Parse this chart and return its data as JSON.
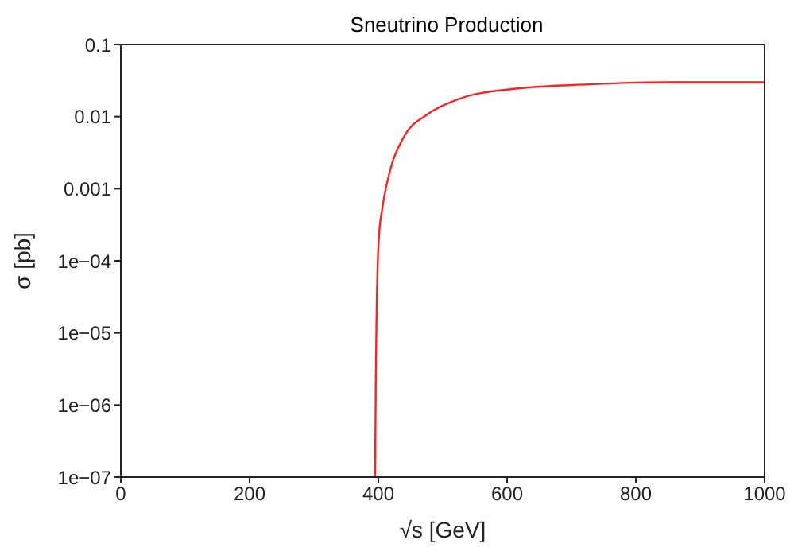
{
  "chart_data": {
    "type": "line",
    "title": "Sneutrino Production",
    "xlabel": "√s [GeV]",
    "ylabel": "σ [pb]",
    "log": "y",
    "marker": "none",
    "line_style": "solid",
    "xlim": [
      0,
      1000
    ],
    "xticks": [
      0,
      200,
      400,
      600,
      800,
      1000
    ],
    "ylim": [
      1e-07,
      0.1
    ],
    "yticks": [
      {
        "value": 1e-07,
        "label": "1e−07"
      },
      {
        "value": 1e-06,
        "label": "1e−06"
      },
      {
        "value": 1e-05,
        "label": "1e−05"
      },
      {
        "value": 0.0001,
        "label": "1e−04"
      },
      {
        "value": 0.001,
        "label": "0.001"
      },
      {
        "value": 0.01,
        "label": "0.01"
      },
      {
        "value": 0.1,
        "label": "0.1"
      }
    ],
    "series": [
      {
        "color": "#ff2020",
        "x": [
          395,
          396,
          397,
          398,
          398.7,
          401,
          406,
          419,
          439,
          476,
          524,
          605,
          727,
          848,
          1000
        ],
        "values": [
          1e-07,
          2e-06,
          1.2e-05,
          4e-05,
          7.4e-05,
          0.00022,
          0.00052,
          0.0019,
          0.0051,
          0.0107,
          0.0174,
          0.024,
          0.028,
          0.03,
          0.03
        ]
      }
    ]
  }
}
